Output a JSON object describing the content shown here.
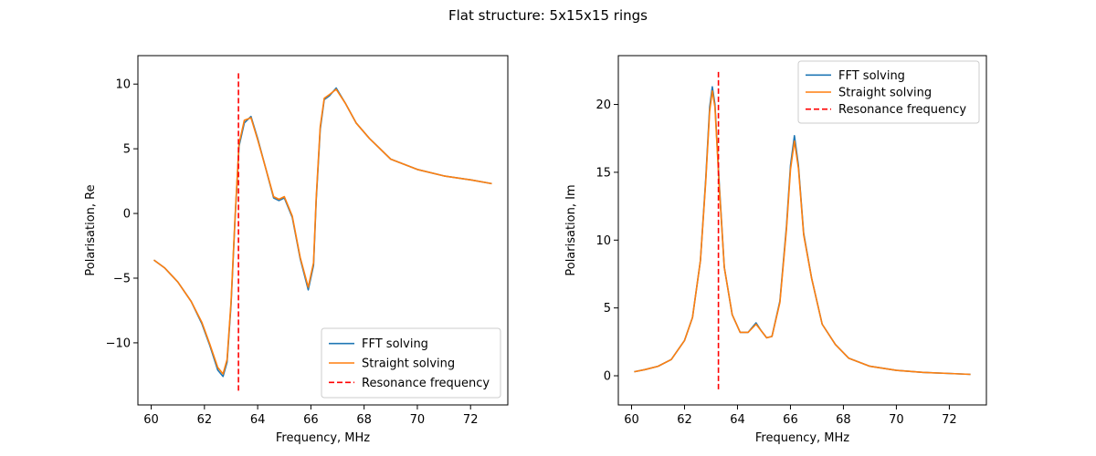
{
  "figure": {
    "title": "Flat structure: 5x15x15 rings"
  },
  "chart_data": [
    {
      "type": "line",
      "xlabel": "Frequency, MHz",
      "ylabel": "Polarisation, Re",
      "xlim": [
        59.5,
        73.4
      ],
      "ylim": [
        -14.8,
        12.2
      ],
      "xticks": [
        60,
        62,
        64,
        66,
        68,
        70,
        72
      ],
      "yticks": [
        -10,
        -5,
        0,
        5,
        10
      ],
      "legend_position": "lower-right",
      "grid": false,
      "series": [
        {
          "name": "FFT solving",
          "color": "#1f77b4",
          "style": "solid",
          "x": [
            60.1,
            60.5,
            61.0,
            61.5,
            61.9,
            62.2,
            62.5,
            62.7,
            62.85,
            63.0,
            63.15,
            63.3,
            63.5,
            63.75,
            64.0,
            64.3,
            64.6,
            64.8,
            65.0,
            65.3,
            65.6,
            65.9,
            66.1,
            66.2,
            66.35,
            66.5,
            66.7,
            66.95,
            67.3,
            67.7,
            68.2,
            69.0,
            70.0,
            71.0,
            72.0,
            72.8
          ],
          "y": [
            -3.6,
            -4.2,
            -5.3,
            -6.8,
            -8.5,
            -10.2,
            -12.1,
            -12.6,
            -11.5,
            -7.0,
            -0.5,
            5.2,
            7.0,
            7.5,
            5.8,
            3.5,
            1.2,
            1.0,
            1.2,
            -0.3,
            -3.5,
            -5.9,
            -4.0,
            1.0,
            6.5,
            8.8,
            9.1,
            9.7,
            8.5,
            7.0,
            5.8,
            4.2,
            3.4,
            2.9,
            2.6,
            2.3
          ]
        },
        {
          "name": "Straight solving",
          "color": "#ff7f0e",
          "style": "solid",
          "x": [
            60.1,
            60.5,
            61.0,
            61.5,
            61.9,
            62.2,
            62.5,
            62.7,
            62.85,
            63.0,
            63.15,
            63.3,
            63.5,
            63.75,
            64.0,
            64.3,
            64.6,
            64.8,
            65.0,
            65.3,
            65.6,
            65.9,
            66.1,
            66.2,
            66.35,
            66.5,
            66.7,
            66.95,
            67.3,
            67.7,
            68.2,
            69.0,
            70.0,
            71.0,
            72.0,
            72.8
          ],
          "y": [
            -3.6,
            -4.2,
            -5.3,
            -6.8,
            -8.4,
            -10.1,
            -11.9,
            -12.4,
            -11.3,
            -6.8,
            -0.4,
            5.4,
            7.2,
            7.4,
            5.7,
            3.5,
            1.3,
            1.1,
            1.3,
            -0.2,
            -3.4,
            -5.7,
            -3.8,
            1.2,
            6.7,
            8.9,
            9.2,
            9.6,
            8.5,
            7.0,
            5.8,
            4.2,
            3.4,
            2.9,
            2.6,
            2.3
          ]
        },
        {
          "name": "Resonance frequency",
          "color": "#ff0000",
          "style": "dashed",
          "x": [
            63.28,
            63.28
          ],
          "y": [
            -13.7,
            10.9
          ]
        }
      ]
    },
    {
      "type": "line",
      "xlabel": "Frequency, MHz",
      "ylabel": "Polarisation, Im",
      "xlim": [
        59.5,
        73.4
      ],
      "ylim": [
        -2.15,
        23.6
      ],
      "xticks": [
        60,
        62,
        64,
        66,
        68,
        70,
        72
      ],
      "yticks": [
        0,
        5,
        10,
        15,
        20
      ],
      "legend_position": "upper-right",
      "grid": false,
      "series": [
        {
          "name": "FFT solving",
          "color": "#1f77b4",
          "style": "solid",
          "x": [
            60.1,
            60.5,
            61.0,
            61.5,
            62.0,
            62.3,
            62.6,
            62.8,
            62.95,
            63.05,
            63.15,
            63.3,
            63.5,
            63.8,
            64.1,
            64.4,
            64.7,
            64.9,
            65.1,
            65.3,
            65.6,
            65.85,
            66.0,
            66.15,
            66.3,
            66.5,
            66.8,
            67.2,
            67.7,
            68.2,
            69.0,
            70.0,
            71.0,
            72.0,
            72.8
          ],
          "y": [
            0.3,
            0.45,
            0.7,
            1.2,
            2.6,
            4.3,
            8.5,
            14.5,
            19.8,
            21.3,
            20.0,
            14.5,
            8.0,
            4.5,
            3.2,
            3.2,
            3.9,
            3.3,
            2.8,
            2.9,
            5.5,
            11.0,
            15.5,
            17.7,
            15.5,
            10.5,
            7.2,
            3.8,
            2.3,
            1.3,
            0.7,
            0.4,
            0.25,
            0.17,
            0.1
          ]
        },
        {
          "name": "Straight solving",
          "color": "#ff7f0e",
          "style": "solid",
          "x": [
            60.1,
            60.5,
            61.0,
            61.5,
            62.0,
            62.3,
            62.6,
            62.8,
            62.95,
            63.05,
            63.15,
            63.3,
            63.5,
            63.8,
            64.1,
            64.4,
            64.7,
            64.9,
            65.1,
            65.3,
            65.6,
            65.85,
            66.0,
            66.15,
            66.3,
            66.5,
            66.8,
            67.2,
            67.7,
            68.2,
            69.0,
            70.0,
            71.0,
            72.0,
            72.8
          ],
          "y": [
            0.3,
            0.45,
            0.7,
            1.2,
            2.6,
            4.3,
            8.5,
            14.3,
            19.5,
            21.0,
            19.8,
            14.3,
            8.0,
            4.5,
            3.2,
            3.2,
            3.8,
            3.3,
            2.8,
            2.9,
            5.4,
            10.8,
            15.2,
            17.3,
            15.3,
            10.4,
            7.2,
            3.8,
            2.3,
            1.3,
            0.7,
            0.4,
            0.25,
            0.17,
            0.1
          ]
        },
        {
          "name": "Resonance frequency",
          "color": "#ff0000",
          "style": "dashed",
          "x": [
            63.28,
            63.28
          ],
          "y": [
            -1.0,
            22.5
          ]
        }
      ]
    }
  ]
}
